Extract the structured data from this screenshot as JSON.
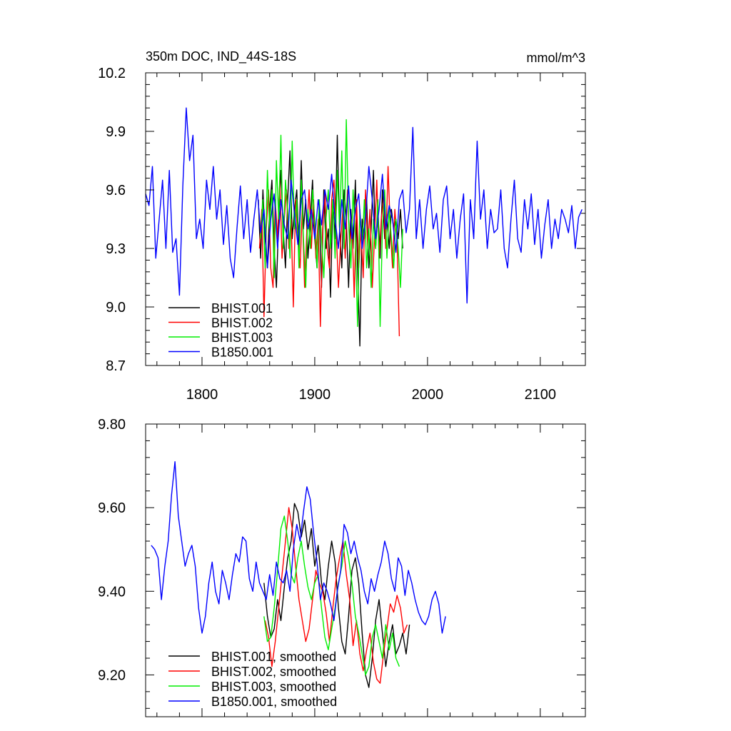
{
  "chart_data": [
    {
      "type": "line",
      "title_left": "350m DOC, IND_44S-18S",
      "title_right": "mmol/m^3",
      "xlim": [
        1750,
        2140
      ],
      "ylim": [
        8.7,
        10.2
      ],
      "xticks": [
        1800,
        1900,
        2000,
        2100
      ],
      "xtick_labels": [
        "1800",
        "1900",
        "2000",
        "2100"
      ],
      "yticks": [
        8.7,
        9.0,
        9.3,
        9.6,
        9.9,
        10.2
      ],
      "ytick_labels": [
        "8.7",
        "9.0",
        "9.3",
        "9.6",
        "9.9",
        "10.2"
      ],
      "legend_position": "bottom-left",
      "series": [
        {
          "name": "BHIST.001",
          "color": "#000000",
          "x_start": 1850,
          "step": 2,
          "values": [
            9.55,
            9.25,
            9.6,
            9.35,
            9.2,
            9.5,
            9.65,
            9.3,
            9.1,
            9.45,
            9.7,
            9.4,
            9.2,
            9.55,
            9.8,
            9.35,
            9.5,
            9.6,
            9.3,
            9.75,
            9.4,
            9.55,
            9.25,
            9.45,
            9.65,
            9.35,
            9.2,
            9.5,
            9.1,
            9.6,
            9.3,
            9.4,
            9.05,
            9.55,
            9.35,
            9.88,
            9.4,
            9.2,
            9.6,
            9.45,
            9.1,
            9.5,
            9.3,
            9.65,
            9.2,
            8.8,
            9.45,
            9.35,
            9.55,
            9.2,
            9.4,
            9.7,
            9.3,
            9.5,
            9.25,
            9.6,
            9.35,
            9.45,
            9.3,
            9.5,
            9.4,
            9.45,
            9.35,
            9.5,
            9.3
          ]
        },
        {
          "name": "BHIST.002",
          "color": "#ff0000",
          "x_start": 1851,
          "step": 2,
          "values": [
            9.3,
            9.5,
            8.95,
            9.4,
            9.6,
            9.2,
            9.1,
            9.55,
            9.35,
            9.65,
            9.25,
            9.45,
            9.6,
            9.3,
            9.45,
            9.0,
            9.55,
            9.35,
            9.2,
            9.5,
            9.1,
            9.4,
            9.6,
            9.3,
            9.55,
            9.25,
            9.45,
            8.9,
            9.4,
            9.6,
            9.3,
            9.2,
            9.55,
            9.65,
            9.4,
            9.1,
            9.35,
            9.5,
            9.25,
            9.6,
            9.3,
            9.45,
            9.05,
            9.55,
            9.2,
            9.4,
            9.15,
            9.6,
            9.3,
            9.5,
            9.1,
            9.35,
            9.65,
            9.25,
            9.45,
            9.55,
            9.3,
            9.72,
            9.4,
            9.2,
            9.5,
            9.35,
            8.85
          ]
        },
        {
          "name": "BHIST.003",
          "color": "#00ee00",
          "x_start": 1852,
          "step": 2,
          "values": [
            9.35,
            9.55,
            9.2,
            9.7,
            9.4,
            9.6,
            9.15,
            9.75,
            9.45,
            9.88,
            9.3,
            9.65,
            9.5,
            9.25,
            9.85,
            9.4,
            9.55,
            9.2,
            9.65,
            9.35,
            9.1,
            9.5,
            9.3,
            9.6,
            9.45,
            9.2,
            9.55,
            9.35,
            9.15,
            9.45,
            9.6,
            9.3,
            9.55,
            9.25,
            9.7,
            9.4,
            9.8,
            9.3,
            9.96,
            9.45,
            9.2,
            9.6,
            9.35,
            8.9,
            9.5,
            9.3,
            9.55,
            9.2,
            9.4,
            9.1,
            9.45,
            9.3,
            9.55,
            8.9,
            9.4,
            9.6,
            9.25,
            9.5,
            9.35,
            9.2,
            9.45,
            9.3,
            9.1,
            9.4
          ]
        },
        {
          "name": "B1850.001",
          "color": "#0000ff",
          "x_start": 1750,
          "step": 3,
          "values": [
            9.58,
            9.52,
            9.72,
            9.25,
            9.45,
            9.65,
            9.3,
            9.7,
            9.28,
            9.35,
            9.06,
            9.62,
            10.02,
            9.75,
            9.88,
            9.35,
            9.45,
            9.3,
            9.65,
            9.5,
            9.72,
            9.45,
            9.6,
            9.32,
            9.52,
            9.25,
            9.15,
            9.4,
            9.62,
            9.35,
            9.55,
            9.28,
            9.45,
            9.6,
            9.38,
            9.5,
            9.2,
            9.45,
            9.58,
            9.3,
            9.55,
            9.42,
            9.35,
            9.65,
            9.48,
            9.32,
            9.55,
            9.6,
            9.4,
            9.5,
            9.35,
            9.55,
            9.42,
            9.6,
            9.5,
            9.68,
            9.45,
            9.3,
            9.55,
            9.4,
            9.62,
            9.35,
            9.5,
            9.58,
            9.3,
            9.45,
            9.72,
            9.55,
            9.35,
            9.5,
            9.68,
            9.4,
            9.52,
            9.45,
            9.28,
            9.55,
            9.6,
            9.38,
            9.5,
            9.92,
            9.35,
            9.55,
            9.3,
            9.5,
            9.62,
            9.4,
            9.48,
            9.28,
            9.55,
            9.62,
            9.35,
            9.5,
            9.25,
            9.45,
            9.58,
            9.02,
            9.55,
            9.35,
            9.85,
            9.45,
            9.6,
            9.3,
            9.5,
            9.38,
            9.4,
            9.6,
            9.3,
            9.2,
            9.45,
            9.65,
            9.35,
            9.28,
            9.55,
            9.4,
            9.58,
            9.32,
            9.5,
            9.25,
            9.42,
            9.55,
            9.3,
            9.45,
            9.35,
            9.5,
            9.45,
            9.38,
            9.52,
            9.3,
            9.46,
            9.5
          ]
        }
      ]
    },
    {
      "type": "line",
      "xlim": [
        1750,
        2140
      ],
      "ylim": [
        9.1,
        9.8
      ],
      "xticks": [
        1800,
        1900,
        2000,
        2100
      ],
      "yticks": [
        9.2,
        9.4,
        9.6,
        9.8
      ],
      "ytick_labels": [
        "9.20",
        "9.40",
        "9.60",
        "9.80"
      ],
      "legend_position": "bottom-left",
      "series": [
        {
          "name": "BHIST.001, smoothed",
          "color": "#000000",
          "x_start": 1855,
          "step": 3,
          "values": [
            9.42,
            9.34,
            9.29,
            9.31,
            9.38,
            9.33,
            9.41,
            9.48,
            9.52,
            9.61,
            9.59,
            9.53,
            9.57,
            9.5,
            9.55,
            9.46,
            9.51,
            9.42,
            9.38,
            9.46,
            9.52,
            9.47,
            9.36,
            9.28,
            9.25,
            9.34,
            9.45,
            9.48,
            9.42,
            9.3,
            9.2,
            9.17,
            9.24,
            9.33,
            9.38,
            9.3,
            9.22,
            9.28,
            9.32,
            9.25,
            9.27,
            9.3,
            9.25,
            9.32
          ]
        },
        {
          "name": "BHIST.002, smoothed",
          "color": "#ff0000",
          "x_start": 1856,
          "step": 3,
          "values": [
            9.33,
            9.29,
            9.22,
            9.28,
            9.36,
            9.44,
            9.52,
            9.6,
            9.55,
            9.46,
            9.38,
            9.33,
            9.28,
            9.31,
            9.38,
            9.45,
            9.42,
            9.4,
            9.35,
            9.28,
            9.36,
            9.43,
            9.48,
            9.52,
            9.44,
            9.38,
            9.27,
            9.33,
            9.25,
            9.21,
            9.26,
            9.3,
            9.23,
            9.19,
            9.18,
            9.25,
            9.31,
            9.37,
            9.35,
            9.39,
            9.36,
            9.3,
            9.32
          ]
        },
        {
          "name": "BHIST.003, smoothed",
          "color": "#00ee00",
          "x_start": 1855,
          "step": 3,
          "values": [
            9.34,
            9.28,
            9.29,
            9.36,
            9.45,
            9.55,
            9.58,
            9.52,
            9.44,
            9.42,
            9.48,
            9.52,
            9.46,
            9.41,
            9.38,
            9.42,
            9.44,
            9.36,
            9.29,
            9.26,
            9.31,
            9.36,
            9.42,
            9.46,
            9.52,
            9.48,
            9.42,
            9.34,
            9.3,
            9.25,
            9.2,
            9.22,
            9.29,
            9.32,
            9.28,
            9.24,
            9.32,
            9.26,
            9.3,
            9.24,
            9.22
          ]
        },
        {
          "name": "B1850.001, smoothed",
          "color": "#0000ff",
          "x_start": 1755,
          "step": 3,
          "values": [
            9.51,
            9.5,
            9.48,
            9.38,
            9.46,
            9.52,
            9.63,
            9.71,
            9.58,
            9.52,
            9.46,
            9.49,
            9.51,
            9.46,
            9.36,
            9.3,
            9.34,
            9.42,
            9.47,
            9.4,
            9.37,
            9.45,
            9.42,
            9.38,
            9.44,
            9.49,
            9.47,
            9.53,
            9.52,
            9.43,
            9.4,
            9.47,
            9.42,
            9.4,
            9.38,
            9.44,
            9.39,
            9.47,
            9.43,
            9.42,
            9.45,
            9.4,
            9.5,
            9.56,
            9.52,
            9.59,
            9.65,
            9.62,
            9.54,
            9.47,
            9.38,
            9.42,
            9.4,
            9.37,
            9.33,
            9.4,
            9.45,
            9.56,
            9.54,
            9.49,
            9.52,
            9.48,
            9.45,
            9.4,
            9.37,
            9.43,
            9.4,
            9.44,
            9.47,
            9.52,
            9.49,
            9.43,
            9.4,
            9.48,
            9.46,
            9.39,
            9.45,
            9.42,
            9.38,
            9.35,
            9.33,
            9.32,
            9.34,
            9.38,
            9.4,
            9.37,
            9.3,
            9.34
          ]
        }
      ]
    }
  ]
}
